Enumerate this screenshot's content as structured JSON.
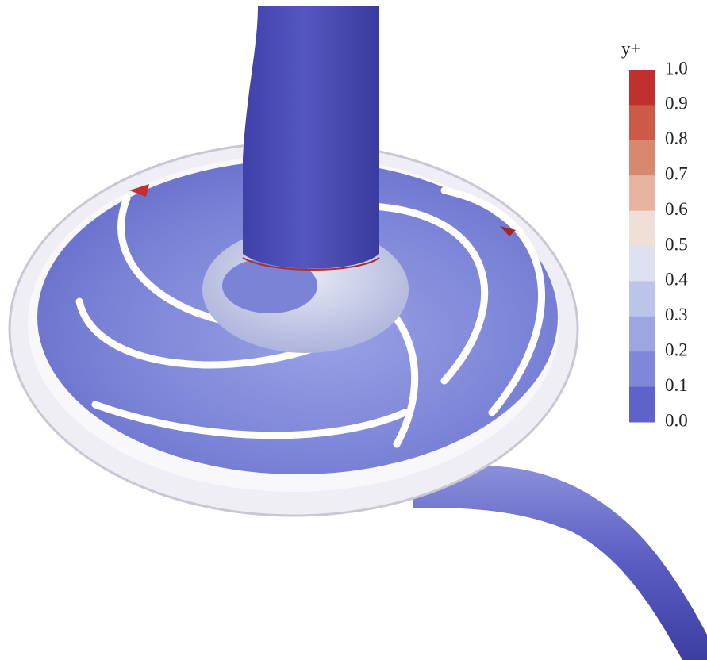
{
  "colorbar": {
    "title": "y+",
    "labels": [
      "1.0",
      "0.9",
      "0.8",
      "0.7",
      "0.6",
      "0.5",
      "0.4",
      "0.3",
      "0.2",
      "0.1",
      "0.0"
    ],
    "colors": [
      "#c0302e",
      "#cc5a48",
      "#d98870",
      "#e6b4a0",
      "#efdfd6",
      "#dde0f0",
      "#bdc4ea",
      "#9ea6e2",
      "#8087d8",
      "#5f62c9"
    ]
  }
}
